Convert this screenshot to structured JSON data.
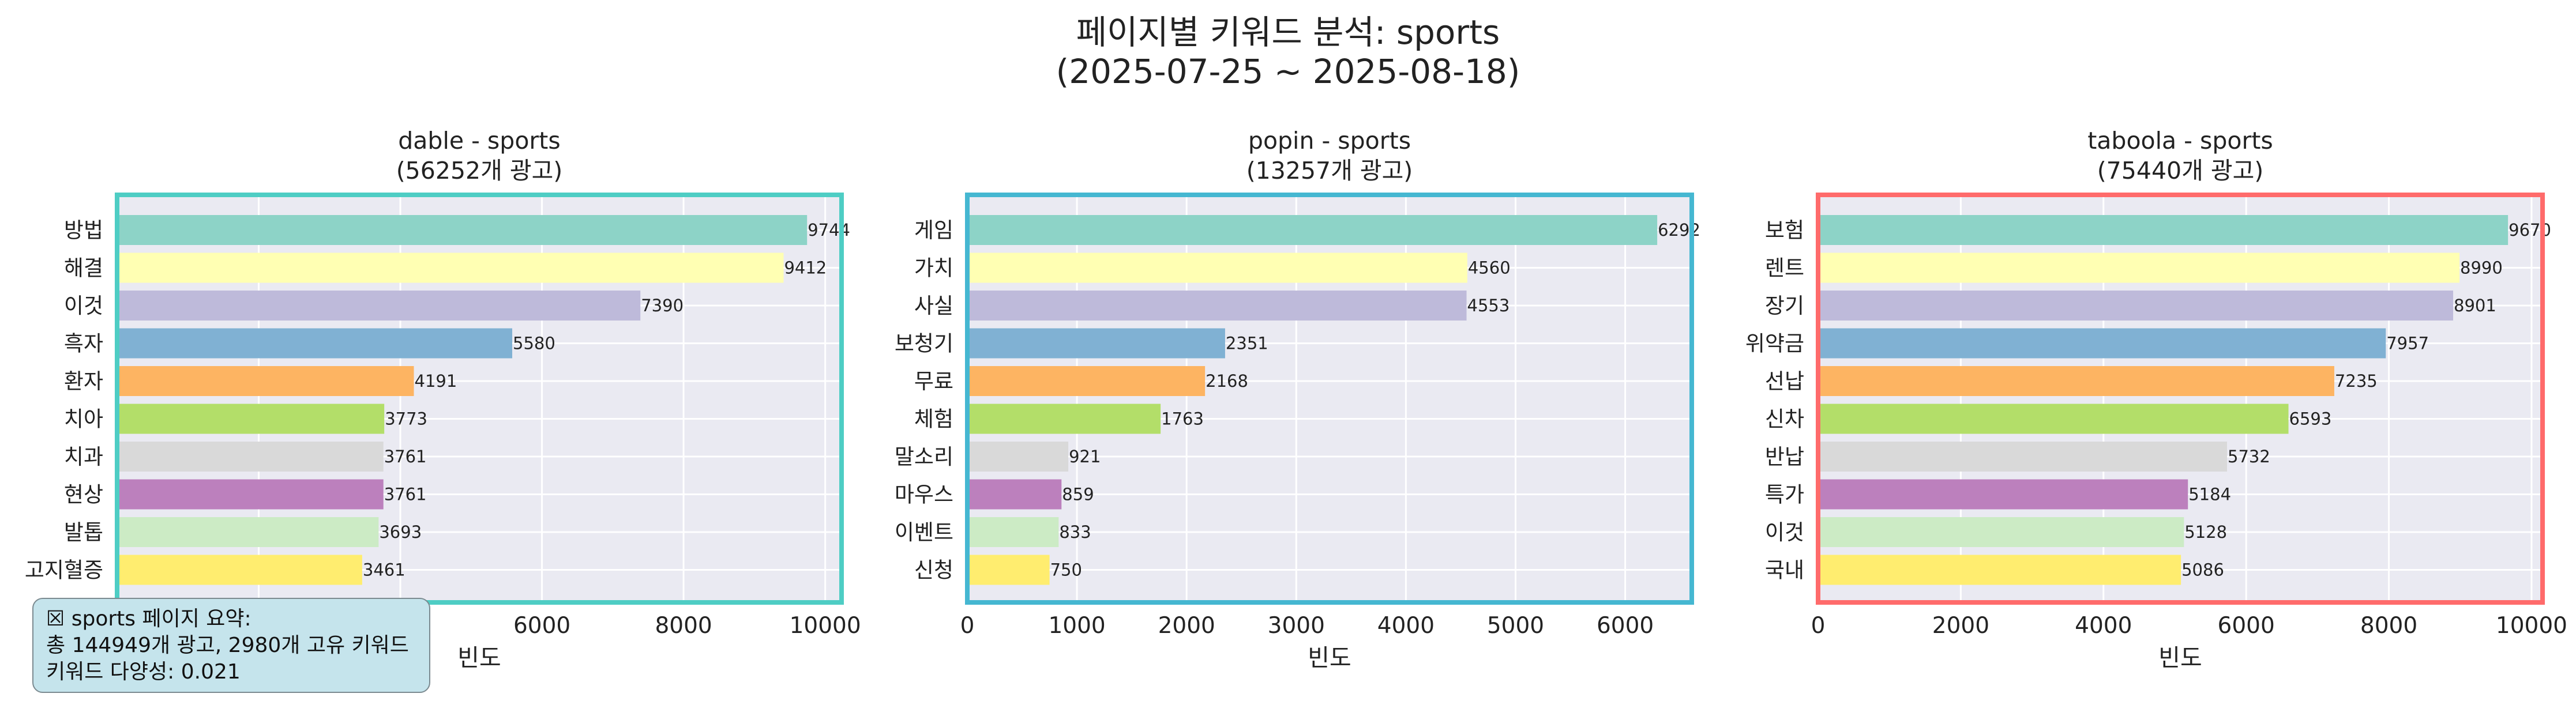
{
  "title_line1": "페이지별 키워드 분석: sports",
  "title_line2": "(2025-07-25 ~ 2025-08-18)",
  "xlabel": "빈도",
  "summary": {
    "line1": "☒ sports 페이지 요약:",
    "line2": "총 144949개 광고, 2980개 고유 키워드",
    "line3": "키워드 다양성: 0.021"
  },
  "colors": {
    "bars": [
      "#8dd3c7",
      "#ffffb3",
      "#bebada",
      "#80b1d3",
      "#fdb462",
      "#b3de69",
      "#d9d9d9",
      "#bc80bd",
      "#ccebc5",
      "#ffed6f"
    ],
    "plot_bg": "#eaeaf2",
    "grid": "#ffffff"
  },
  "chart_data": [
    {
      "type": "bar",
      "orientation": "horizontal",
      "title": "dable - sports",
      "subtitle": "(56252개 광고)",
      "categories": [
        "방법",
        "해결",
        "이것",
        "흑자",
        "환자",
        "치아",
        "치과",
        "현상",
        "발톱",
        "고지혈증"
      ],
      "values": [
        9744,
        9412,
        7390,
        5580,
        4191,
        3773,
        3761,
        3761,
        3693,
        3461
      ],
      "xlim": [
        0,
        10231
      ],
      "xticks": [
        0,
        2000,
        4000,
        6000,
        8000,
        10000
      ],
      "xlabel": "빈도",
      "border_color": "#4ecdc4",
      "grid": true
    },
    {
      "type": "bar",
      "orientation": "horizontal",
      "title": "popin - sports",
      "subtitle": "(13257개 광고)",
      "categories": [
        "게임",
        "가치",
        "사실",
        "보청기",
        "무료",
        "체험",
        "말소리",
        "마우스",
        "이벤트",
        "신청"
      ],
      "values": [
        6292,
        4560,
        4553,
        2351,
        2168,
        1763,
        921,
        859,
        833,
        750
      ],
      "xlim": [
        0,
        6607
      ],
      "xticks": [
        0,
        1000,
        2000,
        3000,
        4000,
        5000,
        6000
      ],
      "xlabel": "빈도",
      "border_color": "#45b7d1",
      "grid": true
    },
    {
      "type": "bar",
      "orientation": "horizontal",
      "title": "taboola - sports",
      "subtitle": "(75440개 광고)",
      "categories": [
        "보험",
        "렌트",
        "장기",
        "위약금",
        "선납",
        "신차",
        "반납",
        "특가",
        "이것",
        "국내"
      ],
      "values": [
        9670,
        8990,
        8901,
        7957,
        7235,
        6593,
        5732,
        5184,
        5128,
        5086
      ],
      "xlim": [
        0,
        10154
      ],
      "xticks": [
        0,
        2000,
        4000,
        6000,
        8000,
        10000
      ],
      "xlabel": "빈도",
      "border_color": "#ff6b6b",
      "grid": true
    }
  ]
}
